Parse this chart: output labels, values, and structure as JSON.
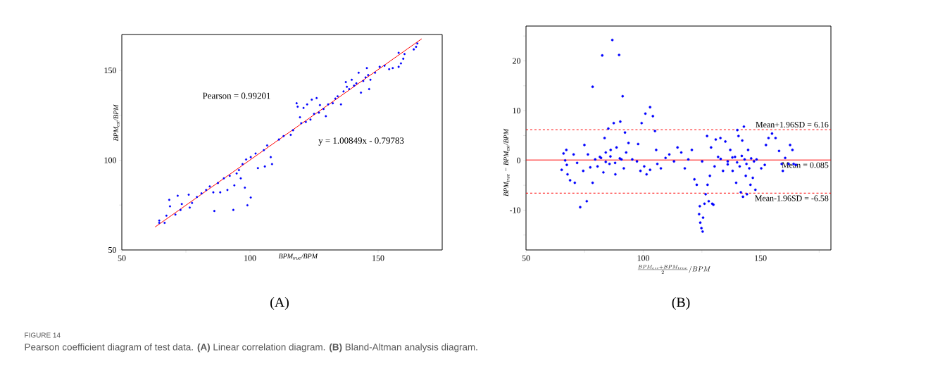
{
  "chart_data": [
    {
      "type": "scatter",
      "xlabel": "BPM$_{true}$/BPM",
      "ylabel": "BPM$_{est}$/BPM",
      "xlim": [
        50,
        175
      ],
      "ylim": [
        50,
        170
      ],
      "xticks": [
        50,
        {
          "value": 75,
          "label": null
        },
        100,
        {
          "value": 125,
          "label": null
        },
        150
      ],
      "yticks": [
        50,
        {
          "value": 75,
          "label": null
        },
        100,
        {
          "value": 125,
          "label": null
        },
        150
      ],
      "annotations": [
        "Pearson = 0.99201",
        "y = 1.00849x - 0.79783",
        "(A)"
      ],
      "series": [
        {
          "type": "scatter",
          "marker": "circle",
          "color": "#0000ff",
          "x": [
            64.6,
            64.6,
            66.7,
            67.4,
            68.8,
            68.5,
            70.9,
            71.8,
            72.9,
            73.4,
            76.1,
            77.4,
            76.5,
            79.3,
            81.1,
            82.9,
            84.3,
            85.7,
            86.1,
            87.5,
            88.4,
            89.8,
            91.2,
            92.1,
            93.5,
            93.9,
            94.8,
            95.7,
            96.4,
            97.1,
            98.0,
            98.5,
            99.0,
            100.3,
            100.3,
            102.2,
            103.1,
            105.4,
            105.8,
            106.7,
            108.1,
            108.6,
            111.3,
            113.1,
            115.9,
            116.8,
            118.2,
            118.6,
            119.5,
            120.0,
            120.9,
            121.8,
            122.3,
            123.6,
            124.1,
            125.0,
            126.0,
            126.9,
            127.3,
            128.7,
            129.6,
            130.5,
            132.3,
            133.3,
            134.2,
            135.5,
            136.5,
            137.4,
            137.8,
            138.7,
            139.7,
            140.6,
            141.5,
            142.4,
            143.3,
            144.2,
            145.1,
            145.6,
            146.1,
            146.5,
            147.0,
            148.8,
            150.6,
            152.5,
            154.3,
            155.7,
            158.0,
            158.9,
            159.8,
            158.0,
            160.3,
            163.9,
            164.8,
            165.3
          ],
          "values": [
            66.4,
            65.1,
            65.1,
            69.1,
            74.3,
            77.9,
            69.7,
            80.2,
            72.3,
            75.6,
            80.8,
            76.2,
            73.6,
            79.5,
            81.5,
            83.4,
            85.4,
            82.1,
            71.7,
            87.3,
            82.1,
            89.9,
            83.4,
            91.3,
            72.3,
            86.0,
            92.6,
            94.5,
            89.9,
            97.8,
            84.7,
            100.4,
            74.9,
            79.2,
            101.7,
            103.7,
            95.6,
            105.6,
            96.5,
            108.2,
            101.7,
            97.8,
            111.5,
            113.4,
            114.1,
            116.7,
            131.7,
            129.8,
            123.9,
            120.6,
            129.1,
            121.3,
            131.1,
            122.6,
            133.7,
            125.8,
            134.6,
            126.5,
            130.7,
            128.5,
            124.5,
            131.1,
            131.7,
            134.3,
            135.6,
            131.1,
            138.3,
            143.5,
            140.9,
            139.6,
            144.8,
            141.5,
            142.8,
            148.7,
            137.6,
            144.1,
            146.1,
            151.3,
            147.4,
            139.6,
            144.8,
            148.7,
            152.0,
            152.6,
            150.7,
            151.3,
            152.0,
            153.9,
            156.5,
            159.8,
            159.1,
            161.7,
            163.1,
            165.0
          ]
        },
        {
          "type": "line",
          "color": "#ff0000",
          "x": [
            63,
            167
          ],
          "values": [
            62.8,
            167.6
          ]
        }
      ]
    },
    {
      "type": "scatter",
      "xlabel": "\\frac{BPM_{est}+BPM_{true}}{2}/BPM",
      "ylabel": "BPM$_{true}$ − BPM$_{est}$/BPM",
      "xlim": [
        50,
        180
      ],
      "ylim": [
        -18,
        27
      ],
      "xticks": [
        50,
        {
          "value": 75,
          "label": null
        },
        100,
        {
          "value": 125,
          "label": null
        },
        150,
        {
          "value": 175,
          "label": null
        }
      ],
      "yticks": [
        {
          "value": -15,
          "label": null
        },
        -10,
        {
          "value": -5,
          "label": null
        },
        0,
        {
          "value": 5,
          "label": null
        },
        10,
        {
          "value": 15,
          "label": null
        },
        20,
        {
          "value": 25,
          "label": null
        }
      ],
      "annotations": [
        "(B)",
        "FIGURE 14",
        "Pearson coefficient diagram of test data. **(A)** Linear correlation diagram. **(B)** Bland-Altman analysis diagram."
      ],
      "ref_lines": [
        {
          "axis": "y",
          "value": 6.16,
          "label": "Mean+1.96SD = 6.16",
          "color": "#ff0000",
          "line_style": "dashed"
        },
        {
          "axis": "y",
          "value": 0.085,
          "label": "Mean = 0.085",
          "color": "#ff0000",
          "line_style": "solid"
        },
        {
          "axis": "y",
          "value": -6.58,
          "label": "Mean-1.96SD = -6.58",
          "color": "#ff0000",
          "line_style": "dashed"
        }
      ],
      "series": [
        {
          "marker": "circle",
          "color": "#0000ff",
          "x": [
            65.2,
            66.0,
            66.7,
            67.2,
            67.4,
            67.7,
            68.8,
            70.3,
            70.8,
            71.8,
            73.1,
            74.4,
            74.9,
            75.9,
            76.4,
            77.4,
            78.4,
            78.4,
            79.5,
            80.5,
            81.5,
            82.5,
            83.0,
            83.5,
            84.0,
            85.1,
            85.6,
            86.1,
            86.8,
            87.4,
            88.1,
            88.6,
            89.7,
            90.2,
            90.7,
            91.2,
            91.7,
            92.2,
            92.7,
            93.7,
            95.3,
            97.3,
            97.8,
            98.8,
            99.3,
            100.4,
            100.9,
            101.4,
            102.9,
            102.9,
            104.1,
            105.0,
            105.5,
            106.0,
            107.5,
            109.5,
            111.1,
            113.1,
            114.6,
            116.2,
            117.7,
            119.2,
            120.7,
            121.8,
            122.8,
            123.8,
            124.1,
            124.3,
            124.8,
            125.1,
            125.3,
            125.5,
            126.1,
            126.6,
            127.2,
            127.4,
            127.9,
            128.4,
            128.9,
            129.4,
            129.9,
            130.4,
            130.9,
            131.9,
            132.9,
            134.0,
            135.0,
            136.0,
            137.1,
            138.1,
            139.1,
            139.6,
            140.1,
            140.6,
            141.1,
            141.6,
            142.2,
            142.5,
            142.9,
            143.2,
            143.7,
            144.2,
            144.7,
            145.2,
            145.7,
            146.7,
            147.2,
            147.8,
            148.3,
            150.3,
            151.8,
            152.3,
            153.4,
            154.9,
            156.4,
            157.9,
            159.0,
            159.5,
            160.5,
            162.0,
            162.6,
            163.6,
            164.1,
            165.1,
            82,
            84,
            86,
            88,
            90,
            133,
            136,
            138,
            140,
            142,
            144,
            146
          ],
          "values": [
            -1.9,
            1.4,
            0,
            2.1,
            -0.9,
            -2.8,
            -4.0,
            1.2,
            -4.5,
            -0.5,
            -9.4,
            -2.1,
            3.1,
            -8.2,
            1.2,
            -1.4,
            14.8,
            -4.5,
            0.2,
            -1.2,
            0.7,
            21.1,
            -2.4,
            4.5,
            1.6,
            6.4,
            -0.7,
            2.1,
            24.2,
            7.5,
            -2.8,
            2.6,
            21.2,
            7.8,
            0.2,
            12.9,
            -1.6,
            5.6,
            1.6,
            3.5,
            0.2,
            -0.2,
            3.3,
            -2.1,
            7.5,
            -1.2,
            9.4,
            -2.8,
            10.7,
            -1.9,
            8.9,
            5.9,
            2.1,
            -0.7,
            -1.6,
            0.5,
            1.2,
            -0.2,
            2.6,
            1.6,
            -1.6,
            0.2,
            2.1,
            -3.8,
            -4.9,
            -10.8,
            -9.2,
            -12.5,
            -13.6,
            -0.2,
            -14.3,
            -11.5,
            -8.7,
            -6.8,
            4.9,
            -4.9,
            -8.2,
            -3.1,
            2.6,
            -8.7,
            -8.9,
            -1.2,
            4.2,
            0.7,
            4.5,
            -2.1,
            3.8,
            -0.2,
            2.1,
            -2.1,
            0.7,
            -4.5,
            6.1,
            4.9,
            -1.2,
            -6.4,
            4.0,
            -7.3,
            6.8,
            0.2,
            -3.1,
            -6.8,
            2.1,
            -1.6,
            -4.9,
            -3.5,
            -0.2,
            -5.9,
            0.2,
            -1.6,
            -0.9,
            3.1,
            4.5,
            5.4,
            4.5,
            1.9,
            -0.7,
            -2.1,
            0.5,
            -0.7,
            3.1,
            2.1,
            -0.7,
            -0.9,
            0.5,
            -0.3,
            0.8,
            -0.5,
            0.4,
            0.3,
            -0.8,
            0.6,
            -0.4,
            0.9,
            -0.7,
            0.4
          ]
        }
      ]
    }
  ]
}
